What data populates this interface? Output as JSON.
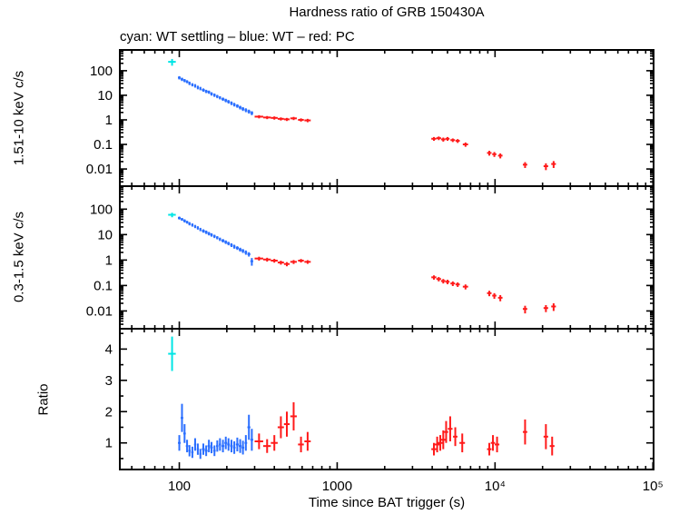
{
  "title": "Hardness ratio of GRB 150430A",
  "subtitle": "cyan: WT settling – blue: WT – red: PC",
  "colors": {
    "cyan": "#00e5e5",
    "blue": "#2b6fff",
    "red": "#ff1a1a",
    "axis": "#000000"
  },
  "x_axis": {
    "scale": "log",
    "lim": [
      42,
      101000
    ],
    "label": "Time since BAT trigger (s)",
    "ticks": [
      {
        "v": 100,
        "label": "100"
      },
      {
        "v": 1000,
        "label": "1000"
      },
      {
        "v": 10000,
        "label": "10⁴"
      },
      {
        "v": 100000,
        "label": "10⁵"
      }
    ]
  },
  "chart_data": [
    {
      "type": "scatter",
      "name": "hard-rate",
      "ylabel": "1.51-10 keV c/s",
      "yscale": "log",
      "ylim": [
        0.002,
        700
      ],
      "yticks": [
        {
          "v": 100,
          "label": "100"
        },
        {
          "v": 10,
          "label": "10"
        },
        {
          "v": 1,
          "label": "1"
        },
        {
          "v": 0.1,
          "label": "0.1"
        },
        {
          "v": 0.01,
          "label": "0.01"
        }
      ],
      "series": [
        {
          "name": "WT settling",
          "color": "cyan",
          "points": [
            [
              90,
              230,
              5,
              70
            ]
          ]
        },
        {
          "name": "WT",
          "color": "blue",
          "points": [
            [
              100,
              52,
              2,
              8
            ],
            [
              104,
              45,
              2,
              7
            ],
            [
              108,
              40,
              2,
              6
            ],
            [
              112,
              36,
              2,
              5
            ],
            [
              116,
              31,
              2,
              5
            ],
            [
              121,
              27,
              2,
              4
            ],
            [
              126,
              24.5,
              2,
              4
            ],
            [
              131,
              21,
              2,
              3.5
            ],
            [
              136,
              19,
              2,
              3
            ],
            [
              142,
              16.5,
              3,
              2.5
            ],
            [
              148,
              14.5,
              3,
              2.2
            ],
            [
              154,
              13.5,
              3,
              2
            ],
            [
              160,
              11.5,
              3,
              1.8
            ],
            [
              167,
              10.2,
              3,
              1.6
            ],
            [
              174,
              9.0,
              3,
              1.4
            ],
            [
              181,
              8.0,
              3,
              1.2
            ],
            [
              189,
              7.0,
              4,
              1.1
            ],
            [
              197,
              6.2,
              4,
              1.0
            ],
            [
              205,
              5.5,
              4,
              0.9
            ],
            [
              214,
              4.8,
              4,
              0.8
            ],
            [
              223,
              4.2,
              4,
              0.7
            ],
            [
              233,
              3.7,
              5,
              0.6
            ],
            [
              243,
              3.2,
              5,
              0.55
            ],
            [
              253,
              2.8,
              5,
              0.5
            ],
            [
              264,
              2.5,
              5,
              0.45
            ],
            [
              276,
              2.2,
              6,
              0.4
            ],
            [
              288,
              1.9,
              6,
              0.35
            ]
          ]
        },
        {
          "name": "PC",
          "color": "red",
          "points": [
            [
              320,
              1.35,
              20,
              0.2
            ],
            [
              360,
              1.25,
              20,
              0.18
            ],
            [
              400,
              1.2,
              20,
              0.18
            ],
            [
              440,
              1.1,
              20,
              0.16
            ],
            [
              480,
              1.05,
              20,
              0.15
            ],
            [
              530,
              1.15,
              25,
              0.17
            ],
            [
              590,
              1.0,
              25,
              0.15
            ],
            [
              650,
              0.95,
              30,
              0.15
            ],
            [
              4100,
              0.17,
              150,
              0.03
            ],
            [
              4400,
              0.18,
              150,
              0.03
            ],
            [
              4700,
              0.16,
              150,
              0.03
            ],
            [
              5000,
              0.17,
              150,
              0.03
            ],
            [
              5400,
              0.15,
              180,
              0.025
            ],
            [
              5800,
              0.14,
              180,
              0.025
            ],
            [
              6500,
              0.1,
              250,
              0.02
            ],
            [
              9200,
              0.045,
              300,
              0.01
            ],
            [
              9900,
              0.04,
              300,
              0.009
            ],
            [
              10800,
              0.035,
              350,
              0.008
            ],
            [
              15500,
              0.015,
              500,
              0.004
            ],
            [
              21000,
              0.013,
              700,
              0.004
            ],
            [
              23500,
              0.016,
              800,
              0.005
            ]
          ]
        }
      ]
    },
    {
      "type": "scatter",
      "name": "soft-rate",
      "ylabel": "0.3-1.5 keV c/s",
      "yscale": "log",
      "ylim": [
        0.002,
        800
      ],
      "yticks": [
        {
          "v": 100,
          "label": "100"
        },
        {
          "v": 10,
          "label": "10"
        },
        {
          "v": 1,
          "label": "1"
        },
        {
          "v": 0.1,
          "label": "0.1"
        },
        {
          "v": 0.01,
          "label": "0.01"
        }
      ],
      "series": [
        {
          "name": "WT settling",
          "color": "cyan",
          "points": [
            [
              90,
              60,
              5,
              12
            ]
          ]
        },
        {
          "name": "WT",
          "color": "blue",
          "points": [
            [
              100,
              45,
              2,
              6
            ],
            [
              104,
              40,
              2,
              5
            ],
            [
              108,
              35,
              2,
              5
            ],
            [
              112,
              31,
              2,
              4
            ],
            [
              116,
              27,
              2,
              4
            ],
            [
              121,
              24,
              2,
              3.5
            ],
            [
              126,
              21,
              2,
              3
            ],
            [
              131,
              18.5,
              2,
              2.8
            ],
            [
              136,
              16,
              2,
              2.4
            ],
            [
              142,
              14,
              3,
              2.1
            ],
            [
              148,
              12.5,
              3,
              1.9
            ],
            [
              154,
              11,
              3,
              1.7
            ],
            [
              160,
              9.8,
              3,
              1.5
            ],
            [
              167,
              8.6,
              3,
              1.3
            ],
            [
              174,
              7.6,
              3,
              1.1
            ],
            [
              181,
              6.6,
              3,
              1.0
            ],
            [
              189,
              5.8,
              4,
              0.9
            ],
            [
              197,
              5.1,
              4,
              0.8
            ],
            [
              205,
              4.5,
              4,
              0.7
            ],
            [
              214,
              3.9,
              4,
              0.65
            ],
            [
              223,
              3.4,
              4,
              0.6
            ],
            [
              233,
              3.0,
              5,
              0.5
            ],
            [
              243,
              2.6,
              5,
              0.45
            ],
            [
              253,
              2.3,
              5,
              0.4
            ],
            [
              264,
              2.0,
              5,
              0.38
            ],
            [
              276,
              1.7,
              6,
              0.33
            ],
            [
              288,
              0.9,
              6,
              0.3
            ]
          ]
        },
        {
          "name": "PC",
          "color": "red",
          "points": [
            [
              320,
              1.15,
              20,
              0.2
            ],
            [
              360,
              1.05,
              20,
              0.18
            ],
            [
              400,
              0.95,
              20,
              0.16
            ],
            [
              440,
              0.8,
              20,
              0.14
            ],
            [
              480,
              0.7,
              20,
              0.13
            ],
            [
              530,
              0.85,
              25,
              0.15
            ],
            [
              590,
              0.95,
              25,
              0.15
            ],
            [
              650,
              0.85,
              30,
              0.14
            ],
            [
              4100,
              0.21,
              150,
              0.04
            ],
            [
              4400,
              0.18,
              150,
              0.035
            ],
            [
              4700,
              0.15,
              150,
              0.03
            ],
            [
              5000,
              0.14,
              150,
              0.028
            ],
            [
              5400,
              0.12,
              180,
              0.025
            ],
            [
              5800,
              0.11,
              180,
              0.022
            ],
            [
              6500,
              0.09,
              250,
              0.02
            ],
            [
              9200,
              0.05,
              300,
              0.012
            ],
            [
              9900,
              0.04,
              300,
              0.01
            ],
            [
              10800,
              0.033,
              350,
              0.009
            ],
            [
              15500,
              0.012,
              500,
              0.004
            ],
            [
              21000,
              0.013,
              700,
              0.004
            ],
            [
              23500,
              0.015,
              800,
              0.005
            ]
          ]
        }
      ]
    },
    {
      "type": "scatter",
      "name": "ratio",
      "ylabel": "Ratio",
      "yscale": "linear",
      "ylim": [
        0.15,
        4.65
      ],
      "yticks": [
        {
          "v": 4,
          "label": "4"
        },
        {
          "v": 3,
          "label": "3"
        },
        {
          "v": 2,
          "label": "2"
        },
        {
          "v": 1,
          "label": "1"
        }
      ],
      "series": [
        {
          "name": "WT settling",
          "color": "cyan",
          "points": [
            [
              90,
              3.85,
              5,
              0.55
            ]
          ]
        },
        {
          "name": "WT",
          "color": "blue",
          "points": [
            [
              100,
              1.0,
              2,
              0.25
            ],
            [
              104,
              1.8,
              2,
              0.45
            ],
            [
              108,
              1.3,
              2,
              0.3
            ],
            [
              112,
              0.9,
              2,
              0.2
            ],
            [
              116,
              0.75,
              2,
              0.18
            ],
            [
              121,
              0.7,
              2,
              0.18
            ],
            [
              126,
              0.95,
              2,
              0.2
            ],
            [
              131,
              0.8,
              2,
              0.18
            ],
            [
              136,
              0.65,
              2,
              0.16
            ],
            [
              142,
              0.8,
              3,
              0.18
            ],
            [
              148,
              0.75,
              3,
              0.17
            ],
            [
              154,
              0.9,
              3,
              0.2
            ],
            [
              160,
              0.85,
              3,
              0.18
            ],
            [
              167,
              0.75,
              3,
              0.17
            ],
            [
              174,
              0.9,
              3,
              0.18
            ],
            [
              181,
              0.95,
              3,
              0.2
            ],
            [
              189,
              0.9,
              4,
              0.2
            ],
            [
              197,
              1.0,
              4,
              0.2
            ],
            [
              205,
              0.95,
              4,
              0.2
            ],
            [
              214,
              0.9,
              4,
              0.2
            ],
            [
              223,
              0.85,
              4,
              0.2
            ],
            [
              233,
              0.95,
              5,
              0.22
            ],
            [
              243,
              0.9,
              5,
              0.22
            ],
            [
              253,
              0.85,
              5,
              0.22
            ],
            [
              264,
              1.0,
              5,
              0.25
            ],
            [
              276,
              1.5,
              6,
              0.4
            ],
            [
              288,
              1.1,
              6,
              0.35
            ]
          ]
        },
        {
          "name": "PC",
          "color": "red",
          "points": [
            [
              320,
              1.05,
              20,
              0.25
            ],
            [
              360,
              0.9,
              20,
              0.22
            ],
            [
              400,
              1.0,
              20,
              0.25
            ],
            [
              440,
              1.5,
              20,
              0.35
            ],
            [
              480,
              1.6,
              20,
              0.4
            ],
            [
              530,
              1.85,
              25,
              0.45
            ],
            [
              590,
              0.95,
              25,
              0.25
            ],
            [
              650,
              1.05,
              30,
              0.3
            ],
            [
              4100,
              0.8,
              150,
              0.2
            ],
            [
              4300,
              0.95,
              150,
              0.25
            ],
            [
              4500,
              1.0,
              150,
              0.25
            ],
            [
              4700,
              1.1,
              150,
              0.3
            ],
            [
              4900,
              1.35,
              150,
              0.35
            ],
            [
              5200,
              1.45,
              180,
              0.4
            ],
            [
              5600,
              1.2,
              180,
              0.3
            ],
            [
              6200,
              1.0,
              250,
              0.3
            ],
            [
              9200,
              0.8,
              300,
              0.2
            ],
            [
              9700,
              1.0,
              300,
              0.25
            ],
            [
              10300,
              0.95,
              350,
              0.25
            ],
            [
              15500,
              1.35,
              500,
              0.4
            ],
            [
              21000,
              1.2,
              700,
              0.4
            ],
            [
              23000,
              0.9,
              800,
              0.3
            ]
          ]
        }
      ]
    }
  ]
}
